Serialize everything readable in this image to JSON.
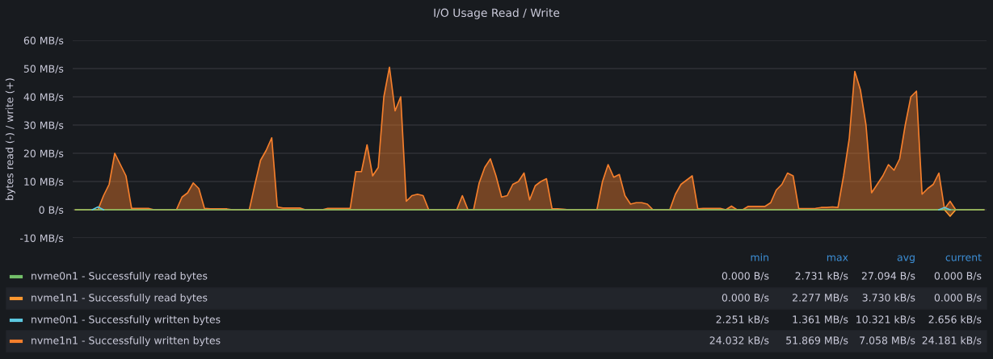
{
  "chart_data": {
    "type": "line",
    "title": "I/O Usage Read / Write",
    "ylabel": "bytes read (-) / write (+)",
    "categories": [
      null,
      null,
      null,
      null,
      null,
      null,
      null,
      null,
      null,
      null,
      null,
      null,
      null,
      null,
      null,
      null,
      null,
      null,
      null,
      null,
      null,
      null,
      null,
      null,
      null,
      null,
      null,
      null,
      null,
      null,
      null,
      null,
      null,
      null,
      null,
      null,
      null,
      null,
      null,
      null,
      null,
      null,
      null,
      null,
      null,
      null,
      null,
      null,
      null,
      null,
      null,
      null,
      null,
      null,
      null,
      null,
      null,
      null,
      null,
      null,
      null,
      null,
      null,
      null,
      null,
      null,
      null,
      null,
      null,
      null,
      null,
      null,
      null,
      null,
      null,
      null,
      null,
      null,
      null,
      null,
      null,
      null,
      null,
      null,
      null,
      null,
      null,
      null,
      null,
      null,
      null,
      null,
      null,
      null,
      null,
      null,
      null,
      null,
      null,
      null,
      null,
      null,
      null,
      null,
      null,
      null,
      null,
      null,
      null,
      null,
      null,
      null,
      null,
      null,
      null,
      null,
      null,
      null,
      null,
      null,
      null,
      null,
      null,
      null,
      null,
      null,
      null,
      null,
      null,
      null,
      null,
      null,
      null,
      null,
      null,
      null,
      null,
      null,
      null,
      null,
      null,
      null,
      null,
      null,
      null,
      null,
      null,
      null,
      null,
      null,
      null,
      null,
      null,
      null,
      null,
      null,
      null,
      null,
      null,
      null,
      null,
      null,
      null
    ],
    "series": [
      {
        "name": "nvme0n1 - Successfully read bytes",
        "color": "#73bf69",
        "values": [
          0,
          0,
          0,
          0,
          0,
          0,
          0,
          0,
          0,
          0,
          0,
          0,
          0,
          0,
          0,
          0,
          0,
          0,
          0,
          0,
          0,
          0,
          0,
          0,
          0,
          0,
          0,
          0,
          0,
          0,
          0,
          0,
          0,
          0,
          0,
          0,
          0,
          0,
          0,
          0,
          0,
          0,
          0,
          0,
          0,
          0,
          0,
          0,
          0,
          0,
          0,
          0,
          0,
          0,
          0,
          0,
          0,
          0,
          0,
          0,
          0,
          0,
          0,
          0,
          0,
          0,
          0,
          0,
          0,
          0,
          0,
          0,
          0,
          0,
          0,
          0,
          0,
          0,
          0,
          0,
          0,
          0,
          0,
          0,
          0,
          0,
          0,
          0,
          0,
          0,
          0,
          0,
          0,
          0,
          0,
          0,
          0,
          0,
          0,
          0,
          0,
          0,
          0,
          0,
          0,
          0,
          0,
          0,
          0,
          0,
          0,
          0,
          0,
          0,
          0,
          0,
          0,
          0,
          0,
          0,
          0,
          0,
          0,
          0,
          0,
          0,
          0,
          0,
          0,
          0,
          0,
          0,
          0,
          0,
          0,
          0,
          0,
          0,
          0,
          0,
          0,
          0,
          0,
          0,
          0,
          0,
          0,
          0,
          0,
          0,
          0,
          0,
          0,
          0,
          0,
          0,
          0,
          0,
          0,
          0,
          0,
          0,
          0
        ]
      },
      {
        "name": "nvme1n1 - Successfully read bytes",
        "color": "#ff9830",
        "type": "area",
        "values": [
          0,
          0,
          0,
          0,
          0,
          0,
          0,
          0,
          0,
          0,
          0,
          0,
          0,
          0,
          0,
          0,
          0,
          0,
          0,
          0,
          0,
          0,
          0,
          0,
          0,
          0,
          0,
          0,
          0,
          0,
          0,
          0,
          0,
          0,
          0,
          0,
          0,
          0,
          0,
          0,
          0,
          0,
          0,
          0,
          0,
          0,
          0,
          0,
          0,
          0,
          0,
          0,
          0,
          0,
          0,
          0,
          0,
          0,
          0,
          0,
          0,
          0,
          0,
          0,
          0,
          0,
          0,
          0,
          0,
          0,
          0,
          0,
          0,
          0,
          0,
          0,
          0,
          0,
          0,
          0,
          0,
          0,
          0,
          0,
          0,
          0,
          0,
          0,
          0,
          0,
          0,
          0,
          0,
          0,
          0,
          0,
          0,
          0,
          0,
          0,
          0,
          0,
          0,
          0,
          0,
          0,
          0,
          0,
          0,
          0,
          0,
          0,
          0,
          0,
          0,
          0,
          0,
          0,
          0,
          0,
          0,
          0,
          0,
          0,
          0,
          0,
          0,
          0,
          0,
          0,
          0,
          0,
          0,
          0,
          0,
          0,
          0,
          0,
          0,
          0,
          0,
          0,
          0,
          0,
          0,
          0,
          0,
          0,
          0,
          0,
          0,
          0,
          0,
          0,
          0,
          0,
          -2.3,
          0,
          0,
          0,
          0,
          0,
          0
        ]
      },
      {
        "name": "nvme0n1 - Successfully written bytes",
        "color": "#5cc8e0",
        "values": [
          null,
          null,
          null,
          0,
          1,
          0,
          null,
          null,
          null,
          null,
          null,
          null,
          null,
          null,
          null,
          null,
          null,
          null,
          null,
          null,
          null,
          null,
          null,
          null,
          null,
          null,
          null,
          null,
          null,
          null,
          null,
          null,
          null,
          null,
          null,
          null,
          null,
          null,
          null,
          null,
          null,
          null,
          null,
          null,
          null,
          null,
          null,
          null,
          null,
          null,
          null,
          null,
          null,
          null,
          null,
          null,
          null,
          null,
          null,
          null,
          null,
          null,
          null,
          null,
          null,
          null,
          null,
          null,
          null,
          null,
          null,
          null,
          null,
          null,
          null,
          null,
          null,
          null,
          null,
          null,
          null,
          null,
          null,
          null,
          null,
          null,
          null,
          null,
          null,
          null,
          null,
          null,
          null,
          null,
          null,
          null,
          null,
          null,
          null,
          null,
          null,
          null,
          null,
          null,
          null,
          null,
          null,
          null,
          null,
          null,
          null,
          null,
          null,
          null,
          null,
          null,
          null,
          null,
          null,
          null,
          null,
          null,
          null,
          null,
          null,
          null,
          null,
          null,
          null,
          null,
          null,
          null,
          null,
          null,
          null,
          null,
          null,
          null,
          null,
          null,
          null,
          null,
          null,
          null,
          null,
          null,
          null,
          null,
          null,
          null,
          null,
          null,
          null,
          null,
          0,
          0.8,
          0,
          null,
          null,
          null,
          null,
          null,
          null
        ]
      },
      {
        "name": "nvme1n1 - Successfully written bytes",
        "color": "#f57f2c",
        "type": "area",
        "values": [
          0,
          0,
          0,
          0,
          0,
          5,
          9,
          20,
          16,
          12,
          0.5,
          0.5,
          0.5,
          0.5,
          0,
          0,
          0,
          0,
          0,
          4.5,
          6,
          9.5,
          7.5,
          0.5,
          0.3,
          0.3,
          0.3,
          0.3,
          0,
          0,
          0,
          0,
          9,
          17.5,
          21,
          25.5,
          1,
          0.6,
          0.6,
          0.6,
          0.6,
          0,
          0,
          0,
          0,
          0.5,
          0.5,
          0.5,
          0.5,
          0.5,
          13.5,
          13.5,
          23,
          12,
          15,
          40,
          50.5,
          35,
          40,
          3,
          5,
          5.5,
          5,
          0,
          0,
          0,
          0,
          0,
          0,
          5,
          0,
          0,
          9.5,
          15,
          18,
          12,
          4.5,
          5,
          9,
          10,
          13,
          3.5,
          8.5,
          10,
          11,
          0.3,
          0.3,
          0.2,
          0,
          0,
          0,
          0,
          0,
          0,
          10,
          16,
          11.5,
          12.5,
          5,
          2,
          2.5,
          2.5,
          2,
          0,
          0,
          0,
          0,
          5.5,
          9,
          10.5,
          12,
          0.3,
          0.5,
          0.5,
          0.5,
          0.5,
          0,
          1.3,
          0,
          0,
          1.2,
          1.2,
          1.2,
          1.2,
          2.5,
          7,
          9,
          13,
          12,
          0.4,
          0.4,
          0.4,
          0.5,
          0.8,
          0.8,
          1,
          0.8,
          12,
          25,
          49,
          42.5,
          30,
          6,
          9,
          12,
          16,
          14,
          18,
          30,
          40,
          42,
          5.5,
          7.5,
          9,
          13,
          0.3,
          3,
          0,
          0,
          0,
          0,
          0,
          0
        ]
      }
    ],
    "ylim": [
      -10,
      60
    ],
    "yticks": [
      {
        "value": -10,
        "label": "-10 MB/s"
      },
      {
        "value": 0,
        "label": "0 B/s"
      },
      {
        "value": 10,
        "label": "10 MB/s"
      },
      {
        "value": 20,
        "label": "20 MB/s"
      },
      {
        "value": 30,
        "label": "30 MB/s"
      },
      {
        "value": 40,
        "label": "40 MB/s"
      },
      {
        "value": 50,
        "label": "50 MB/s"
      },
      {
        "value": 60,
        "label": "60 MB/s"
      }
    ],
    "grid": "y",
    "legend": "bottom",
    "annotations": [
      "min",
      "max",
      "avg",
      "current",
      "0.000 B/s",
      "2.731 kB/s",
      "27.094 B/s",
      "0.000 B/s",
      "0.000 B/s",
      "2.277 MB/s",
      "3.730 kB/s",
      "0.000 B/s",
      "2.251 kB/s",
      "1.361 MB/s",
      "10.321 kB/s",
      "2.656 kB/s",
      "24.032 kB/s",
      "51.869 MB/s",
      "7.058 MB/s",
      "24.181 kB/s"
    ]
  }
}
